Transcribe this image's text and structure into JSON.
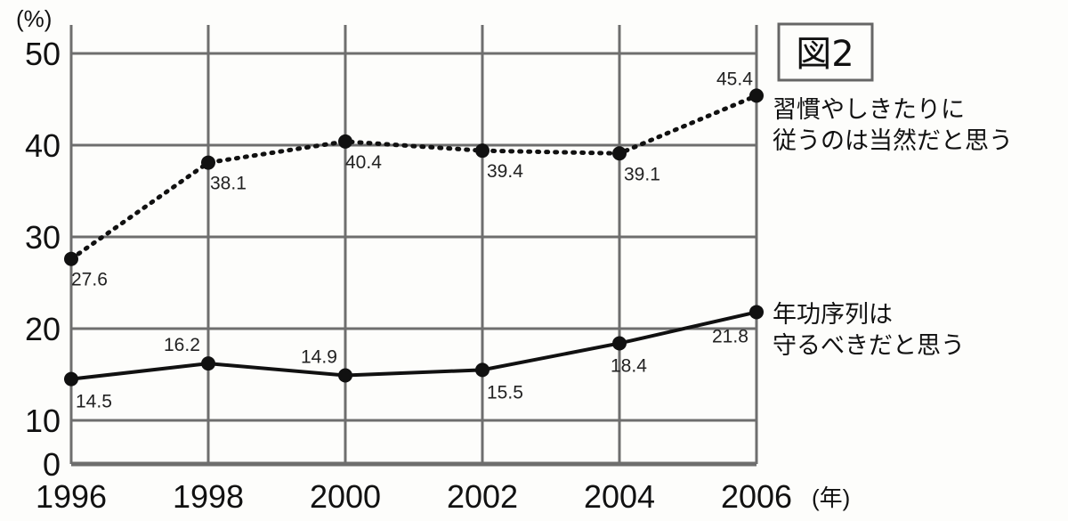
{
  "chart_data": {
    "type": "line",
    "title": "図2",
    "ylabel": "(%)",
    "xlabel_suffix": "(年)",
    "x": [
      1996,
      1998,
      2000,
      2002,
      2004,
      2006
    ],
    "x_tick_labels": [
      "1996",
      "1998",
      "2000",
      "2002",
      "2004",
      "2006"
    ],
    "y_tick_labels": [
      "0",
      "10",
      "20",
      "30",
      "40",
      "50"
    ],
    "y_ticks": [
      0,
      10,
      20,
      30,
      40,
      50
    ],
    "ylim": [
      0,
      50
    ],
    "grid": true,
    "series": [
      {
        "name": "習慣やしきたりに従うのは当然だと思う",
        "legend_lines": [
          "習慣やしきたりに",
          "従うのは当然だと思う"
        ],
        "style": "dotted",
        "values": [
          27.6,
          38.1,
          40.4,
          39.4,
          39.1,
          45.4
        ],
        "labels": [
          "27.6",
          "38.1",
          "40.4",
          "39.4",
          "39.1",
          "45.4"
        ]
      },
      {
        "name": "年功序列は守るべきだと思う",
        "legend_lines": [
          "年功序列は",
          "守るべきだと思う"
        ],
        "style": "solid",
        "values": [
          14.5,
          16.2,
          14.9,
          15.5,
          18.4,
          21.8
        ],
        "labels": [
          "14.5",
          "16.2",
          "14.9",
          "15.5",
          "18.4",
          "21.8"
        ]
      }
    ],
    "colors": {
      "line": "#111111",
      "grid": "#6e6e6e"
    }
  }
}
